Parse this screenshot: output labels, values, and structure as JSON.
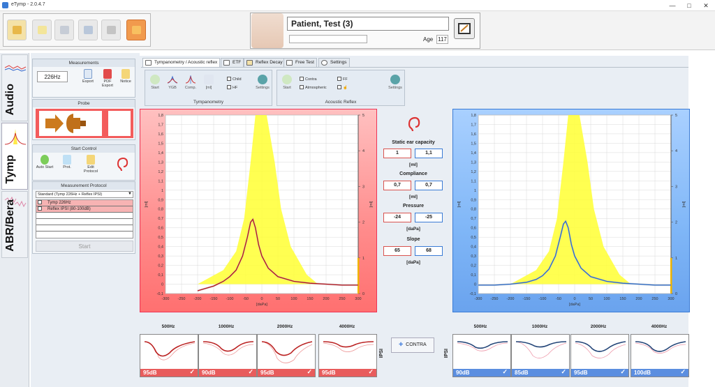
{
  "window": {
    "title": "eTymp - 2.0.4.7"
  },
  "patient": {
    "name": "Patient, Test (3)",
    "age_label": "Age",
    "age": "117"
  },
  "side_tabs": [
    {
      "label": "Audio"
    },
    {
      "label": "Tymp"
    },
    {
      "label": "ABR/Bera"
    }
  ],
  "measurements": {
    "title": "Measurements",
    "frequency": "226Hz",
    "buttons": [
      {
        "label": "Export"
      },
      {
        "label": "PDF Export"
      },
      {
        "label": "Notice"
      }
    ]
  },
  "probe": {
    "title": "Probe"
  },
  "start_control": {
    "title": "Start Control",
    "buttons": [
      {
        "label": "Auto Start"
      },
      {
        "label": "Prot."
      },
      {
        "label": "Edit Protocol"
      }
    ]
  },
  "protocol": {
    "title": "Measurement Protocol",
    "selected": "Standard (Tymp 226Hz + Reflex IPSI)",
    "items": [
      {
        "label": "Tymp 226Hz",
        "checked": true
      },
      {
        "label": "Reflex IPSI (80-100dB)",
        "checked": true
      }
    ],
    "start_label": "Start"
  },
  "tabs": [
    {
      "label": "Tympanometry / Acoustic reflex",
      "active": true
    },
    {
      "label": "ETF"
    },
    {
      "label": "Reflex Decay"
    },
    {
      "label": "Free Test"
    },
    {
      "label": "Settings"
    }
  ],
  "tymp_group": {
    "caption": "Tympanometry",
    "buttons": [
      {
        "label": "Start"
      },
      {
        "label": "YGB"
      },
      {
        "label": "Comp."
      },
      {
        "label": "[ml]"
      },
      {
        "label": "Settings"
      }
    ],
    "checks": [
      {
        "label": "Child"
      },
      {
        "label": "HF"
      }
    ]
  },
  "reflex_group": {
    "caption": "Acoustic Reflex",
    "buttons": [
      {
        "label": "Start"
      },
      {
        "label": "Settings"
      }
    ],
    "checks": [
      {
        "label": "Contra"
      },
      {
        "label": "Atmospheric"
      },
      {
        "label": "FF"
      }
    ]
  },
  "results": {
    "static_label": "Static ear capacity",
    "static_left": "1",
    "static_right": "1,1",
    "static_unit": "[ml]",
    "compliance_label": "Compliance",
    "compliance_left": "0,7",
    "compliance_right": "0,7",
    "compliance_unit": "[ml]",
    "pressure_label": "Pressure",
    "pressure_left": "-24",
    "pressure_right": "-25",
    "pressure_unit": "[daPa]",
    "slope_label": "Slope",
    "slope_left": "65",
    "slope_right": "68",
    "slope_unit": "[daPa]"
  },
  "reflex": {
    "left_vertical": "IPSI",
    "right_vertical": "IPSI",
    "contra_label": "CONTRA",
    "frequencies": [
      "500Hz",
      "1000Hz",
      "2000Hz",
      "4000Hz"
    ],
    "left_levels": [
      "95dB",
      "90dB",
      "95dB",
      "95dB"
    ],
    "right_levels": [
      "90dB",
      "85dB",
      "95dB",
      "100dB"
    ]
  },
  "colors": {
    "left": "#d9534f",
    "right": "#3a7bd5",
    "norm_area": "#ffff33"
  },
  "chart_data": [
    {
      "type": "line",
      "name": "left-tympanogram",
      "xlabel": "[daPa]",
      "ylabel": "[ml]",
      "y2label": "[ml]",
      "xlim": [
        -300,
        300
      ],
      "ylim": [
        -0.1,
        1.8
      ],
      "y2lim": [
        0,
        5
      ],
      "x_ticks": [
        -300,
        -250,
        -200,
        -150,
        -100,
        -50,
        0,
        50,
        100,
        150,
        200,
        250,
        300
      ],
      "y_ticks": [
        "1,8",
        "1,7",
        "1,6",
        "1,5",
        "1,4",
        "1,3",
        "1,2",
        "1,1",
        "1",
        "0,9",
        "0,8",
        "0,7",
        "0,6",
        "0,5",
        "0,4",
        "0,3",
        "0,2",
        "0,1",
        "0",
        "-0,1"
      ],
      "y2_ticks": [
        "5",
        "4",
        "3",
        "2",
        "1",
        "0"
      ],
      "grid": true,
      "series": [
        {
          "x": [
            -200,
            -180,
            -150,
            -120,
            -100,
            -80,
            -60,
            -45,
            -35,
            -28,
            -20,
            -10,
            0,
            20,
            50,
            100,
            150,
            200,
            250,
            300
          ],
          "y": [
            -0.07,
            -0.05,
            -0.02,
            0.03,
            0.08,
            0.15,
            0.3,
            0.5,
            0.66,
            0.69,
            0.6,
            0.42,
            0.3,
            0.17,
            0.08,
            0.03,
            0.01,
            0.0,
            -0.01,
            -0.01
          ]
        }
      ]
    },
    {
      "type": "line",
      "name": "right-tympanogram",
      "xlabel": "[daPa]",
      "ylabel": "[ml]",
      "y2label": "[ml]",
      "xlim": [
        -300,
        300
      ],
      "ylim": [
        -0.1,
        1.8
      ],
      "y2lim": [
        0,
        5
      ],
      "x_ticks": [
        -300,
        -250,
        -200,
        -150,
        -100,
        -50,
        0,
        50,
        100,
        150,
        200,
        250,
        300
      ],
      "y_ticks": [
        "1,8",
        "1,7",
        "1,6",
        "1,5",
        "1,4",
        "1,3",
        "1,2",
        "1,1",
        "1",
        "0,9",
        "0,8",
        "0,7",
        "0,6",
        "0,5",
        "0,4",
        "0,3",
        "0,2",
        "0,1",
        "0",
        "-0,1"
      ],
      "y2_ticks": [
        "5",
        "4",
        "3",
        "2",
        "1",
        "0"
      ],
      "grid": true,
      "series": [
        {
          "x": [
            -300,
            -250,
            -200,
            -150,
            -120,
            -100,
            -80,
            -60,
            -45,
            -35,
            -28,
            -20,
            -10,
            0,
            20,
            50,
            100,
            150,
            200,
            250,
            300
          ],
          "y": [
            -0.01,
            -0.01,
            0.0,
            0.02,
            0.05,
            0.09,
            0.16,
            0.3,
            0.5,
            0.64,
            0.67,
            0.6,
            0.42,
            0.3,
            0.17,
            0.08,
            0.03,
            0.01,
            0.0,
            -0.01,
            -0.01
          ]
        }
      ]
    }
  ]
}
